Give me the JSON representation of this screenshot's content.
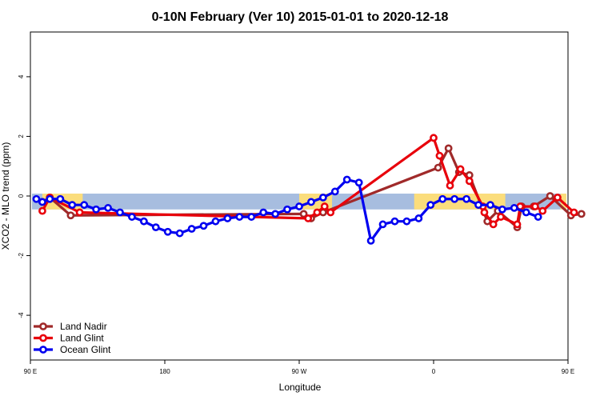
{
  "chart_data": {
    "type": "line",
    "title": "0-10N February (Ver 10)   2015-01-01 to 2020-12-18",
    "xlabel": "Longitude",
    "ylabel": "XCO2 - MLO trend (ppm)",
    "xlim": [
      90,
      450
    ],
    "ylim": [
      -5.5,
      5.5
    ],
    "x_ticks": [
      {
        "value": 90,
        "label": "90 E"
      },
      {
        "value": 180,
        "label": "180"
      },
      {
        "value": 270,
        "label": "90 W"
      },
      {
        "value": 360,
        "label": "0"
      },
      {
        "value": 450,
        "label": "90 E"
      },
      {
        "value": 540,
        "label": "180"
      }
    ],
    "y_ticks": [
      -4,
      -2,
      0,
      2,
      4
    ],
    "grid": false,
    "legend_position": "bottom-left",
    "background_band": {
      "y_range": [
        -0.45,
        0.08
      ],
      "ocean_color": "#a7bddf",
      "land_color": "#fbdd7c",
      "land_x_ranges": [
        [
          98,
          125
        ],
        [
          270,
          292
        ],
        [
          347,
          408
        ],
        [
          445,
          455
        ],
        [
          470,
          490
        ]
      ]
    },
    "series": [
      {
        "name": "Land Nadir",
        "color": "#a02a2a",
        "points": [
          [
            98,
            -0.2
          ],
          [
            103,
            -0.05
          ],
          [
            117,
            -0.65
          ],
          [
            273,
            -0.6
          ],
          [
            278,
            -0.75
          ],
          [
            286,
            -0.55
          ],
          [
            363,
            0.95
          ],
          [
            370,
            1.6
          ],
          [
            377,
            0.8
          ],
          [
            384,
            0.7
          ],
          [
            396,
            -0.85
          ],
          [
            403,
            -0.5
          ],
          [
            416,
            -1.05
          ],
          [
            419,
            -0.35
          ],
          [
            427,
            -0.35
          ],
          [
            438,
            0.0
          ],
          [
            452,
            -0.65
          ],
          [
            459,
            -0.6
          ]
        ]
      },
      {
        "name": "Land Glint",
        "color": "#e8000b",
        "points": [
          [
            98,
            -0.5
          ],
          [
            103,
            -0.05
          ],
          [
            123,
            -0.55
          ],
          [
            276,
            -0.75
          ],
          [
            282,
            -0.55
          ],
          [
            287,
            -0.35
          ],
          [
            291,
            -0.55
          ],
          [
            360,
            1.95
          ],
          [
            364,
            1.35
          ],
          [
            371,
            0.35
          ],
          [
            378,
            0.9
          ],
          [
            384,
            0.5
          ],
          [
            393,
            -0.35
          ],
          [
            394,
            -0.55
          ],
          [
            400,
            -0.95
          ],
          [
            405,
            -0.7
          ],
          [
            416,
            -0.95
          ],
          [
            418,
            -0.35
          ],
          [
            428,
            -0.35
          ],
          [
            433,
            -0.5
          ],
          [
            443,
            -0.05
          ],
          [
            454,
            -0.55
          ]
        ]
      },
      {
        "name": "Ocean Glint",
        "color": "#0000f0",
        "points": [
          [
            94,
            -0.1
          ],
          [
            98,
            -0.2
          ],
          [
            103,
            -0.1
          ],
          [
            110,
            -0.1
          ],
          [
            118,
            -0.3
          ],
          [
            126,
            -0.3
          ],
          [
            134,
            -0.45
          ],
          [
            142,
            -0.4
          ],
          [
            150,
            -0.55
          ],
          [
            158,
            -0.7
          ],
          [
            166,
            -0.85
          ],
          [
            174,
            -1.05
          ],
          [
            182,
            -1.2
          ],
          [
            190,
            -1.25
          ],
          [
            198,
            -1.1
          ],
          [
            206,
            -1.0
          ],
          [
            214,
            -0.85
          ],
          [
            222,
            -0.75
          ],
          [
            230,
            -0.7
          ],
          [
            238,
            -0.7
          ],
          [
            246,
            -0.55
          ],
          [
            254,
            -0.6
          ],
          [
            262,
            -0.45
          ],
          [
            270,
            -0.35
          ],
          [
            278,
            -0.2
          ],
          [
            286,
            -0.05
          ],
          [
            294,
            0.15
          ],
          [
            302,
            0.55
          ],
          [
            310,
            0.45
          ],
          [
            318,
            -1.5
          ],
          [
            326,
            -0.95
          ],
          [
            334,
            -0.85
          ],
          [
            342,
            -0.85
          ],
          [
            350,
            -0.75
          ],
          [
            358,
            -0.3
          ],
          [
            366,
            -0.1
          ],
          [
            374,
            -0.1
          ],
          [
            382,
            -0.1
          ],
          [
            390,
            -0.3
          ],
          [
            398,
            -0.3
          ],
          [
            406,
            -0.45
          ],
          [
            414,
            -0.4
          ],
          [
            422,
            -0.55
          ],
          [
            430,
            -0.7
          ]
        ]
      }
    ]
  }
}
